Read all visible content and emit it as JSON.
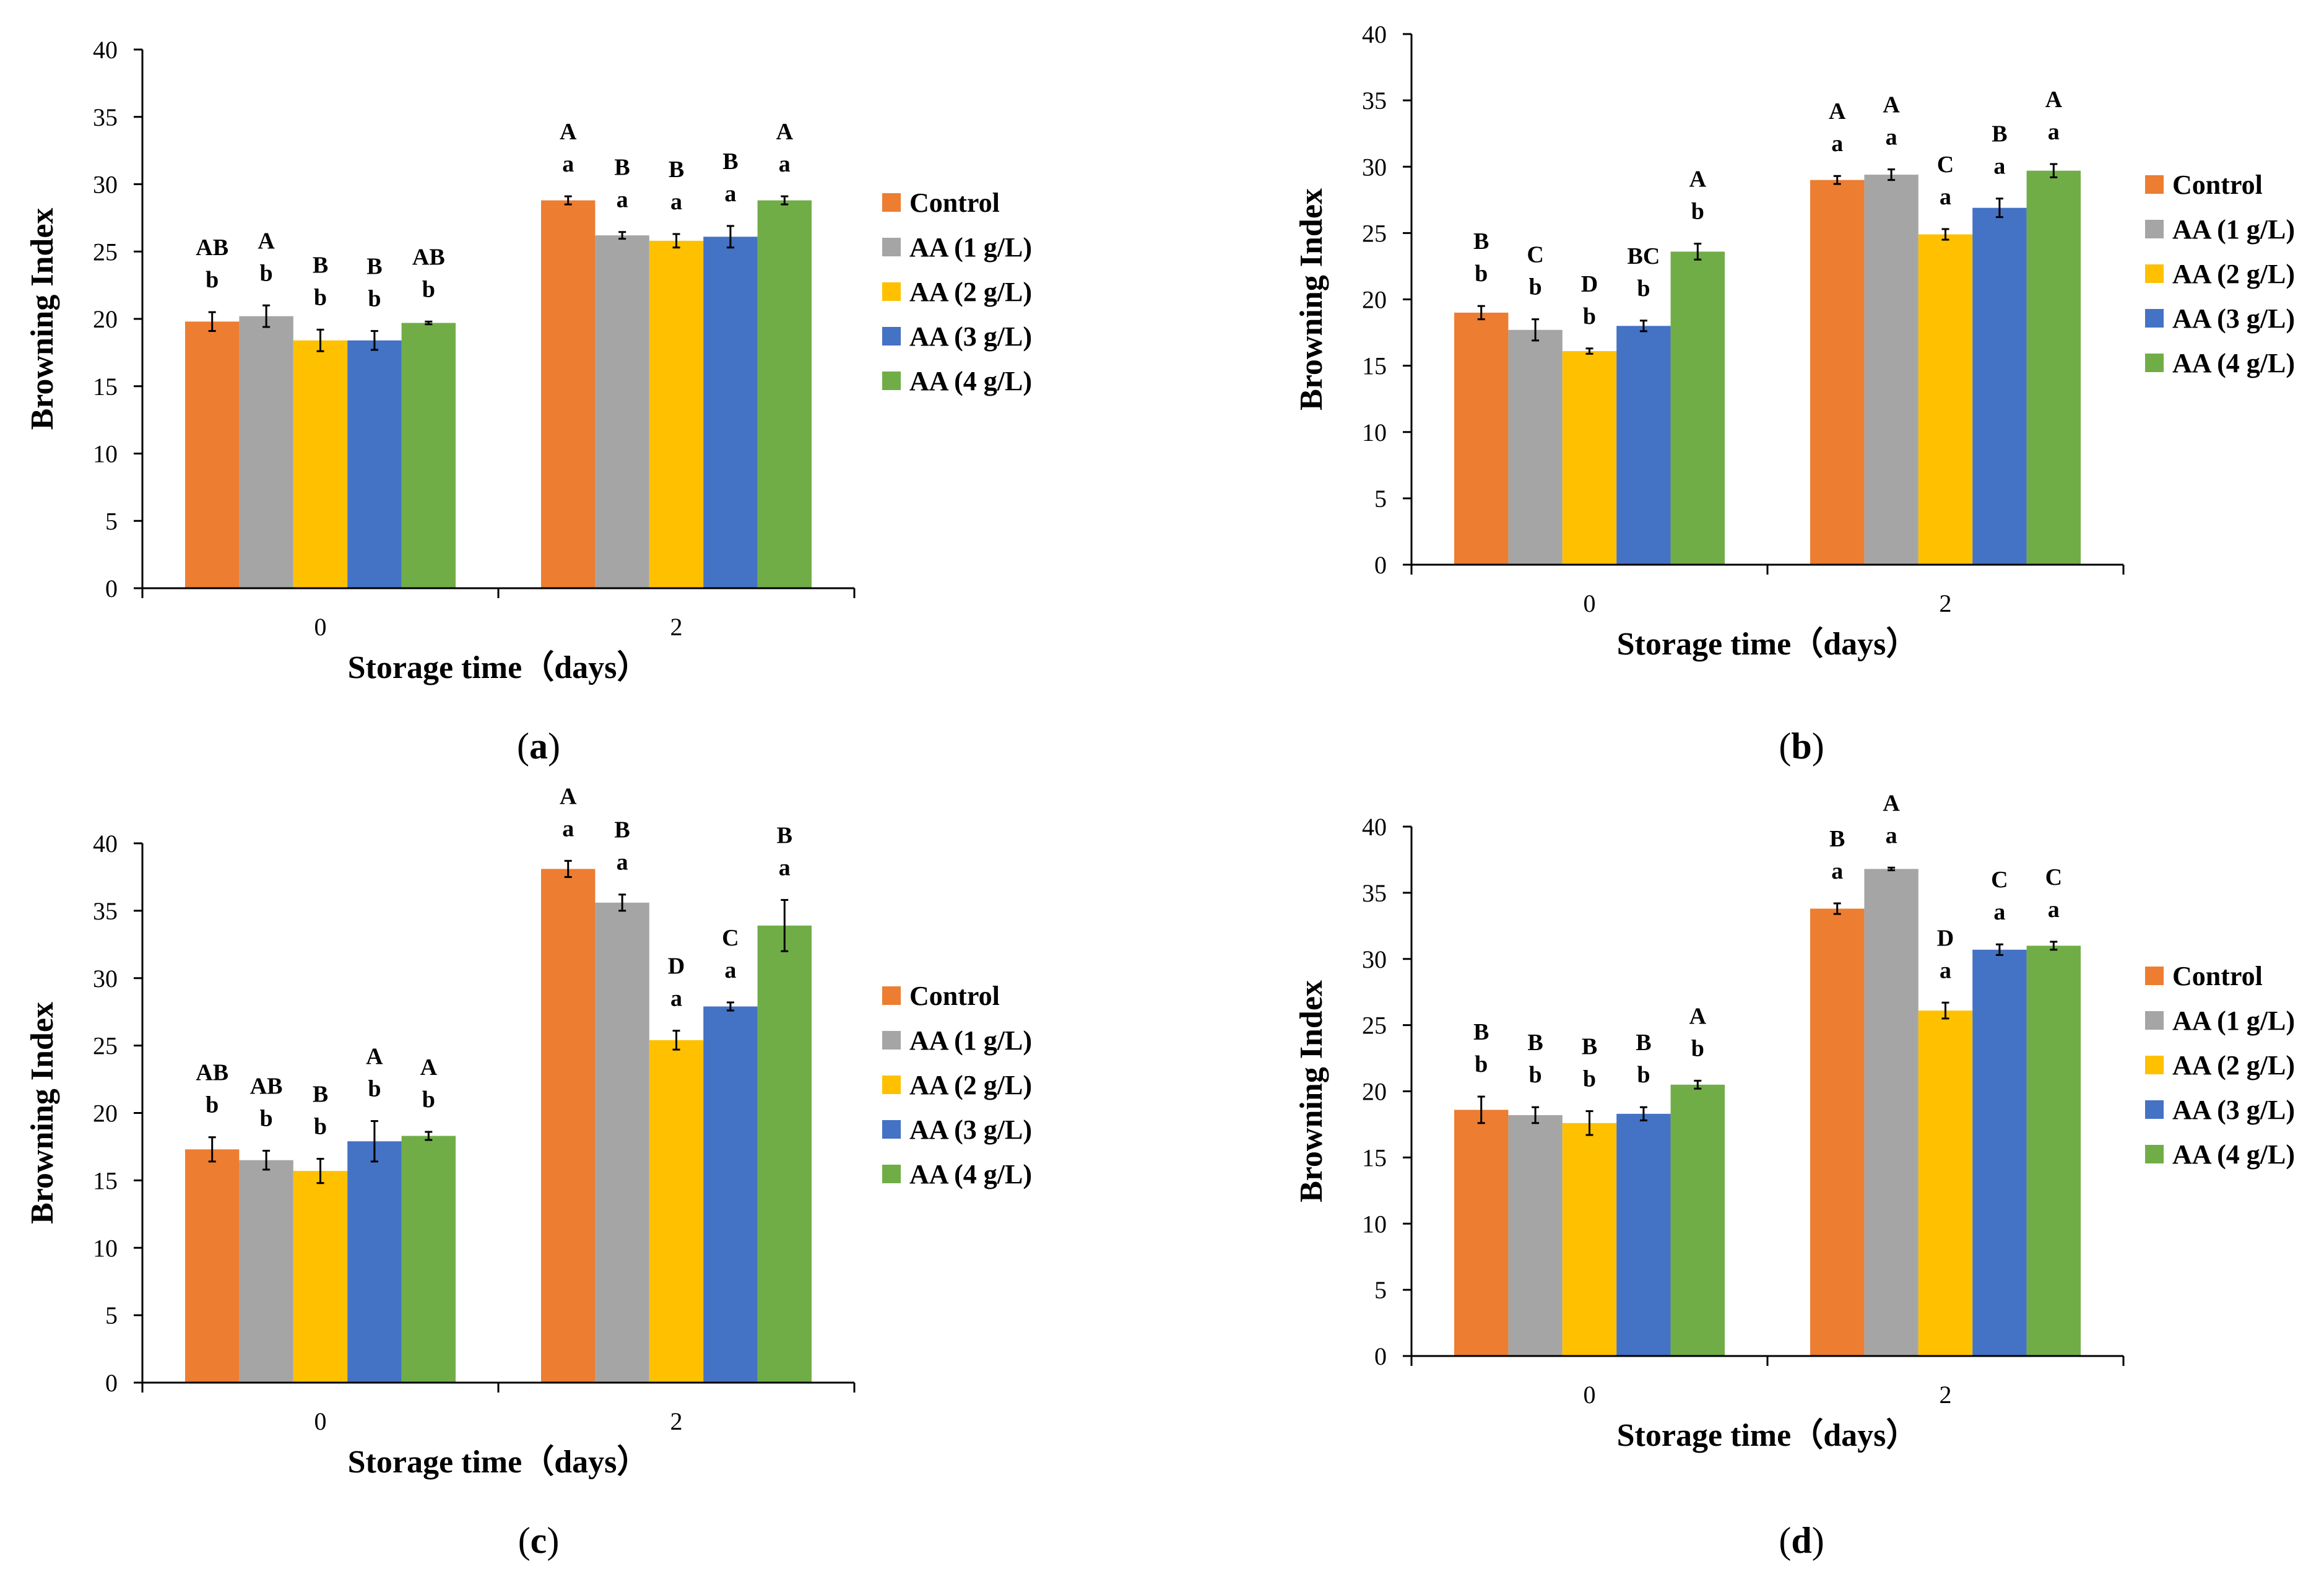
{
  "series_colors": [
    "#ED7D31",
    "#A5A5A5",
    "#FFC000",
    "#4472C4",
    "#70AD47"
  ],
  "chart_data": [
    {
      "type": "bar",
      "panel_label": "a",
      "categories": [
        "0",
        "2"
      ],
      "xlabel": "Storage time（days）",
      "ylabel": "Browning Index",
      "ylim": [
        0,
        40
      ],
      "yticks": [
        "0",
        "5",
        "10",
        "15",
        "20",
        "25",
        "30",
        "35",
        "40"
      ],
      "series": [
        {
          "name": "Control",
          "values": [
            19.8,
            28.8
          ],
          "errors": [
            0.7,
            0.3
          ],
          "letters": [
            [
              "AB",
              "b"
            ],
            [
              "A",
              "a"
            ]
          ]
        },
        {
          "name": "AA (1 g/L)",
          "values": [
            20.2,
            26.2
          ],
          "errors": [
            0.8,
            0.25
          ],
          "letters": [
            [
              "A",
              "b"
            ],
            [
              "B",
              "a"
            ]
          ]
        },
        {
          "name": "AA (2 g/L)",
          "values": [
            18.4,
            25.8
          ],
          "errors": [
            0.8,
            0.5
          ],
          "letters": [
            [
              "B",
              "b"
            ],
            [
              "B",
              "a"
            ]
          ]
        },
        {
          "name": "AA (3 g/L)",
          "values": [
            18.4,
            26.1
          ],
          "errors": [
            0.7,
            0.8
          ],
          "letters": [
            [
              "B",
              "b"
            ],
            [
              "B",
              "a"
            ]
          ]
        },
        {
          "name": "AA (4 g/L)",
          "values": [
            19.7,
            28.8
          ],
          "errors": [
            0.1,
            0.3
          ],
          "letters": [
            [
              "AB",
              "b"
            ],
            [
              "A",
              "a"
            ]
          ]
        }
      ]
    },
    {
      "type": "bar",
      "panel_label": "b",
      "categories": [
        "0",
        "2"
      ],
      "xlabel": "Storage time（days）",
      "ylabel": "Browning Index",
      "ylim": [
        0,
        40
      ],
      "yticks": [
        "0",
        "5",
        "10",
        "15",
        "20",
        "25",
        "30",
        "35",
        "40"
      ],
      "series": [
        {
          "name": "Control",
          "values": [
            19.0,
            29.0
          ],
          "errors": [
            0.5,
            0.3
          ],
          "letters": [
            [
              "B",
              "b"
            ],
            [
              "A",
              "a"
            ]
          ]
        },
        {
          "name": "AA (1 g/L)",
          "values": [
            17.7,
            29.4
          ],
          "errors": [
            0.8,
            0.4
          ],
          "letters": [
            [
              "C",
              "b"
            ],
            [
              "A",
              "a"
            ]
          ]
        },
        {
          "name": "AA (2 g/L)",
          "values": [
            16.1,
            24.9
          ],
          "errors": [
            0.2,
            0.4
          ],
          "letters": [
            [
              "D",
              "b"
            ],
            [
              "C",
              "a"
            ]
          ]
        },
        {
          "name": "AA (3 g/L)",
          "values": [
            18.0,
            26.9
          ],
          "errors": [
            0.4,
            0.7
          ],
          "letters": [
            [
              "BC",
              "b"
            ],
            [
              "B",
              "a"
            ]
          ]
        },
        {
          "name": "AA (4 g/L)",
          "values": [
            23.6,
            29.7
          ],
          "errors": [
            0.6,
            0.5
          ],
          "letters": [
            [
              "A",
              "b"
            ],
            [
              "A",
              "a"
            ]
          ]
        }
      ]
    },
    {
      "type": "bar",
      "panel_label": "c",
      "categories": [
        "0",
        "2"
      ],
      "xlabel": "Storage time（days）",
      "ylabel": "Browning Index",
      "ylim": [
        0,
        40
      ],
      "yticks": [
        "0",
        "5",
        "10",
        "15",
        "20",
        "25",
        "30",
        "35",
        "40"
      ],
      "series": [
        {
          "name": "Control",
          "values": [
            17.3,
            38.1
          ],
          "errors": [
            0.9,
            0.6
          ],
          "letters": [
            [
              "AB",
              "b"
            ],
            [
              "A",
              "a"
            ]
          ]
        },
        {
          "name": "AA (1 g/L)",
          "values": [
            16.5,
            35.6
          ],
          "errors": [
            0.7,
            0.6
          ],
          "letters": [
            [
              "AB",
              "b"
            ],
            [
              "B",
              "a"
            ]
          ]
        },
        {
          "name": "AA (2 g/L)",
          "values": [
            15.7,
            25.4
          ],
          "errors": [
            0.9,
            0.7
          ],
          "letters": [
            [
              "B",
              "b"
            ],
            [
              "D",
              "a"
            ]
          ]
        },
        {
          "name": "AA (3 g/L)",
          "values": [
            17.9,
            27.9
          ],
          "errors": [
            1.5,
            0.3
          ],
          "letters": [
            [
              "A",
              "b"
            ],
            [
              "C",
              "a"
            ]
          ]
        },
        {
          "name": "AA (4 g/L)",
          "values": [
            18.3,
            33.9
          ],
          "errors": [
            0.3,
            1.9
          ],
          "letters": [
            [
              "A",
              "b"
            ],
            [
              "B",
              "a"
            ]
          ]
        }
      ]
    },
    {
      "type": "bar",
      "panel_label": "d",
      "categories": [
        "0",
        "2"
      ],
      "xlabel": "Storage time（days）",
      "ylabel": "Browning Index",
      "ylim": [
        0,
        40
      ],
      "yticks": [
        "0",
        "5",
        "10",
        "15",
        "20",
        "25",
        "30",
        "35",
        "40"
      ],
      "series": [
        {
          "name": "Control",
          "values": [
            18.6,
            33.8
          ],
          "errors": [
            1.0,
            0.4
          ],
          "letters": [
            [
              "B",
              "b"
            ],
            [
              "B",
              "a"
            ]
          ]
        },
        {
          "name": "AA (1 g/L)",
          "values": [
            18.2,
            36.8
          ],
          "errors": [
            0.6,
            0.1
          ],
          "letters": [
            [
              "B",
              "b"
            ],
            [
              "A",
              "a"
            ]
          ]
        },
        {
          "name": "AA (2 g/L)",
          "values": [
            17.6,
            26.1
          ],
          "errors": [
            0.9,
            0.6
          ],
          "letters": [
            [
              "B",
              "b"
            ],
            [
              "D",
              "a"
            ]
          ]
        },
        {
          "name": "AA (3 g/L)",
          "values": [
            18.3,
            30.7
          ],
          "errors": [
            0.5,
            0.4
          ],
          "letters": [
            [
              "B",
              "b"
            ],
            [
              "C",
              "a"
            ]
          ]
        },
        {
          "name": "AA (4 g/L)",
          "values": [
            20.5,
            31.0
          ],
          "errors": [
            0.3,
            0.3
          ],
          "letters": [
            [
              "A",
              "b"
            ],
            [
              "C",
              "a"
            ]
          ]
        }
      ]
    }
  ]
}
